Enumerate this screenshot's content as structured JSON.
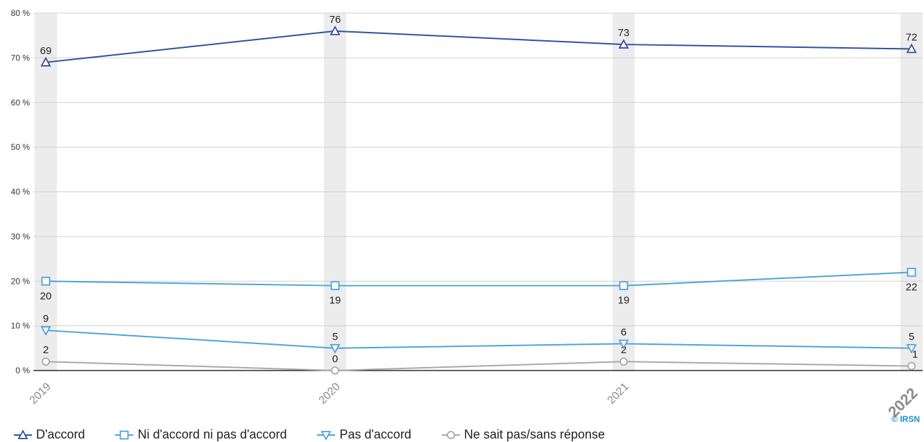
{
  "chart_data": {
    "type": "line",
    "categories": [
      "2019",
      "2020",
      "2021",
      "2022"
    ],
    "highlight_category": "2022",
    "ylim": [
      0,
      80
    ],
    "yticks": [
      0,
      10,
      20,
      30,
      40,
      50,
      60,
      70,
      80
    ],
    "ytick_suffix": " %",
    "grid": true,
    "legend_placement": "bottom-left",
    "series": [
      {
        "name": "D'accord",
        "values": [
          69,
          76,
          73,
          72
        ],
        "color": "#2f4f9e",
        "marker": "triangle-up",
        "label_position": "above"
      },
      {
        "name": "Ni d'accord ni pas d'accord",
        "values": [
          20,
          19,
          19,
          22
        ],
        "color": "#4ea3d8",
        "marker": "square",
        "label_position": "below"
      },
      {
        "name": "Pas d'accord",
        "values": [
          9,
          5,
          6,
          5
        ],
        "color": "#4ea3d8",
        "marker": "triangle-down",
        "label_position": "above"
      },
      {
        "name": "Ne sait pas/sans réponse",
        "values": [
          2,
          0,
          2,
          1
        ],
        "color": "#a8a8a8",
        "marker": "circle",
        "label_position": "above"
      }
    ]
  },
  "copyright": "© IRSN",
  "colors": {
    "highlight": "#1a8fd0",
    "band": "#ececec",
    "grid": "#d0d0d0",
    "axis": "#000000"
  }
}
